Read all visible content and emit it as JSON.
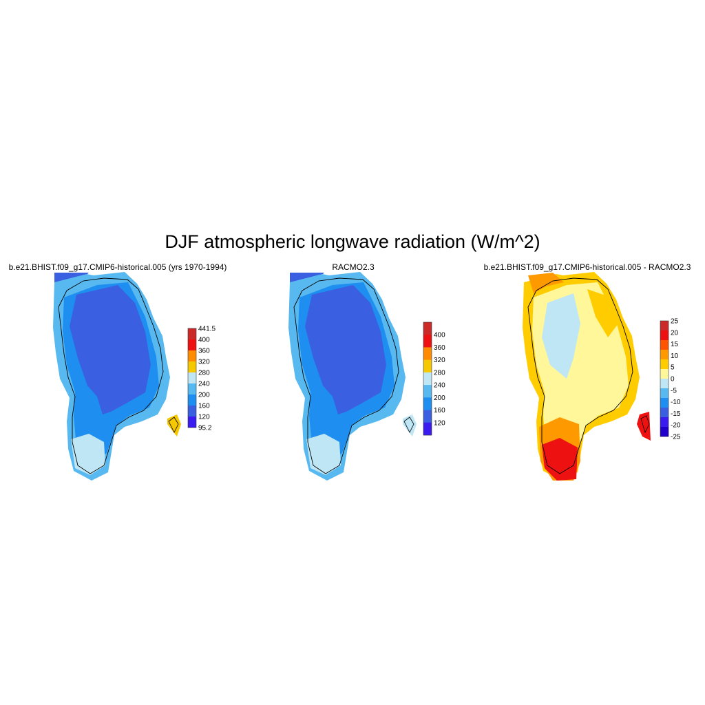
{
  "figure": {
    "title": "DJF atmospheric longwave radiation (W/m^2)"
  },
  "panels": [
    {
      "title": "b.e21.BHIST.f09_g17.CMIP6-historical.005 (yrs 1970-1994)",
      "colorbar": {
        "labels": [
          "441.5",
          "400",
          "360",
          "320",
          "280",
          "240",
          "200",
          "160",
          "120",
          "95.2"
        ],
        "colors": [
          "#cc2929",
          "#ee1111",
          "#ff8c00",
          "#f5c800",
          "#bfe6f5",
          "#58b9f0",
          "#1e8ff0",
          "#3a5fe0",
          "#3b1cf0"
        ]
      },
      "field": {
        "interior": "#3a5fe0",
        "mid": "#1e8ff0",
        "edge": "#58b9f0",
        "coast": "#bfe6f5",
        "hot": "#f5c800"
      }
    },
    {
      "title": "RACMO2.3",
      "colorbar": {
        "labels": [
          "",
          "400",
          "360",
          "320",
          "280",
          "240",
          "200",
          "160",
          "120",
          ""
        ],
        "colors": [
          "#cc2929",
          "#ee1111",
          "#ff8c00",
          "#f5c800",
          "#bfe6f5",
          "#58b9f0",
          "#1e8ff0",
          "#3a5fe0",
          "#3b1cf0"
        ]
      },
      "field": {
        "interior": "#3a5fe0",
        "mid": "#1e8ff0",
        "edge": "#58b9f0",
        "coast": "#bfe6f5",
        "hot": "#bfe6f5"
      }
    },
    {
      "title": "b.e21.BHIST.f09_g17.CMIP6-historical.005 - RACMO2.3",
      "colorbar": {
        "labels": [
          "25",
          "20",
          "15",
          "10",
          "5",
          "0",
          "-5",
          "-10",
          "-15",
          "-20",
          "-25"
        ],
        "colors": [
          "#cc2929",
          "#ee1111",
          "#ff5500",
          "#ff9900",
          "#ffcc00",
          "#fff799",
          "#bfe6f5",
          "#58b9f0",
          "#1e8ff0",
          "#3a5fe0",
          "#3b1cf0",
          "#2200cc"
        ]
      },
      "field": {
        "interior": "#fff799",
        "mid": "#bfe6f5",
        "edge": "#ffcc00",
        "coast": "#ff9900",
        "hot": "#ee1111"
      }
    }
  ]
}
